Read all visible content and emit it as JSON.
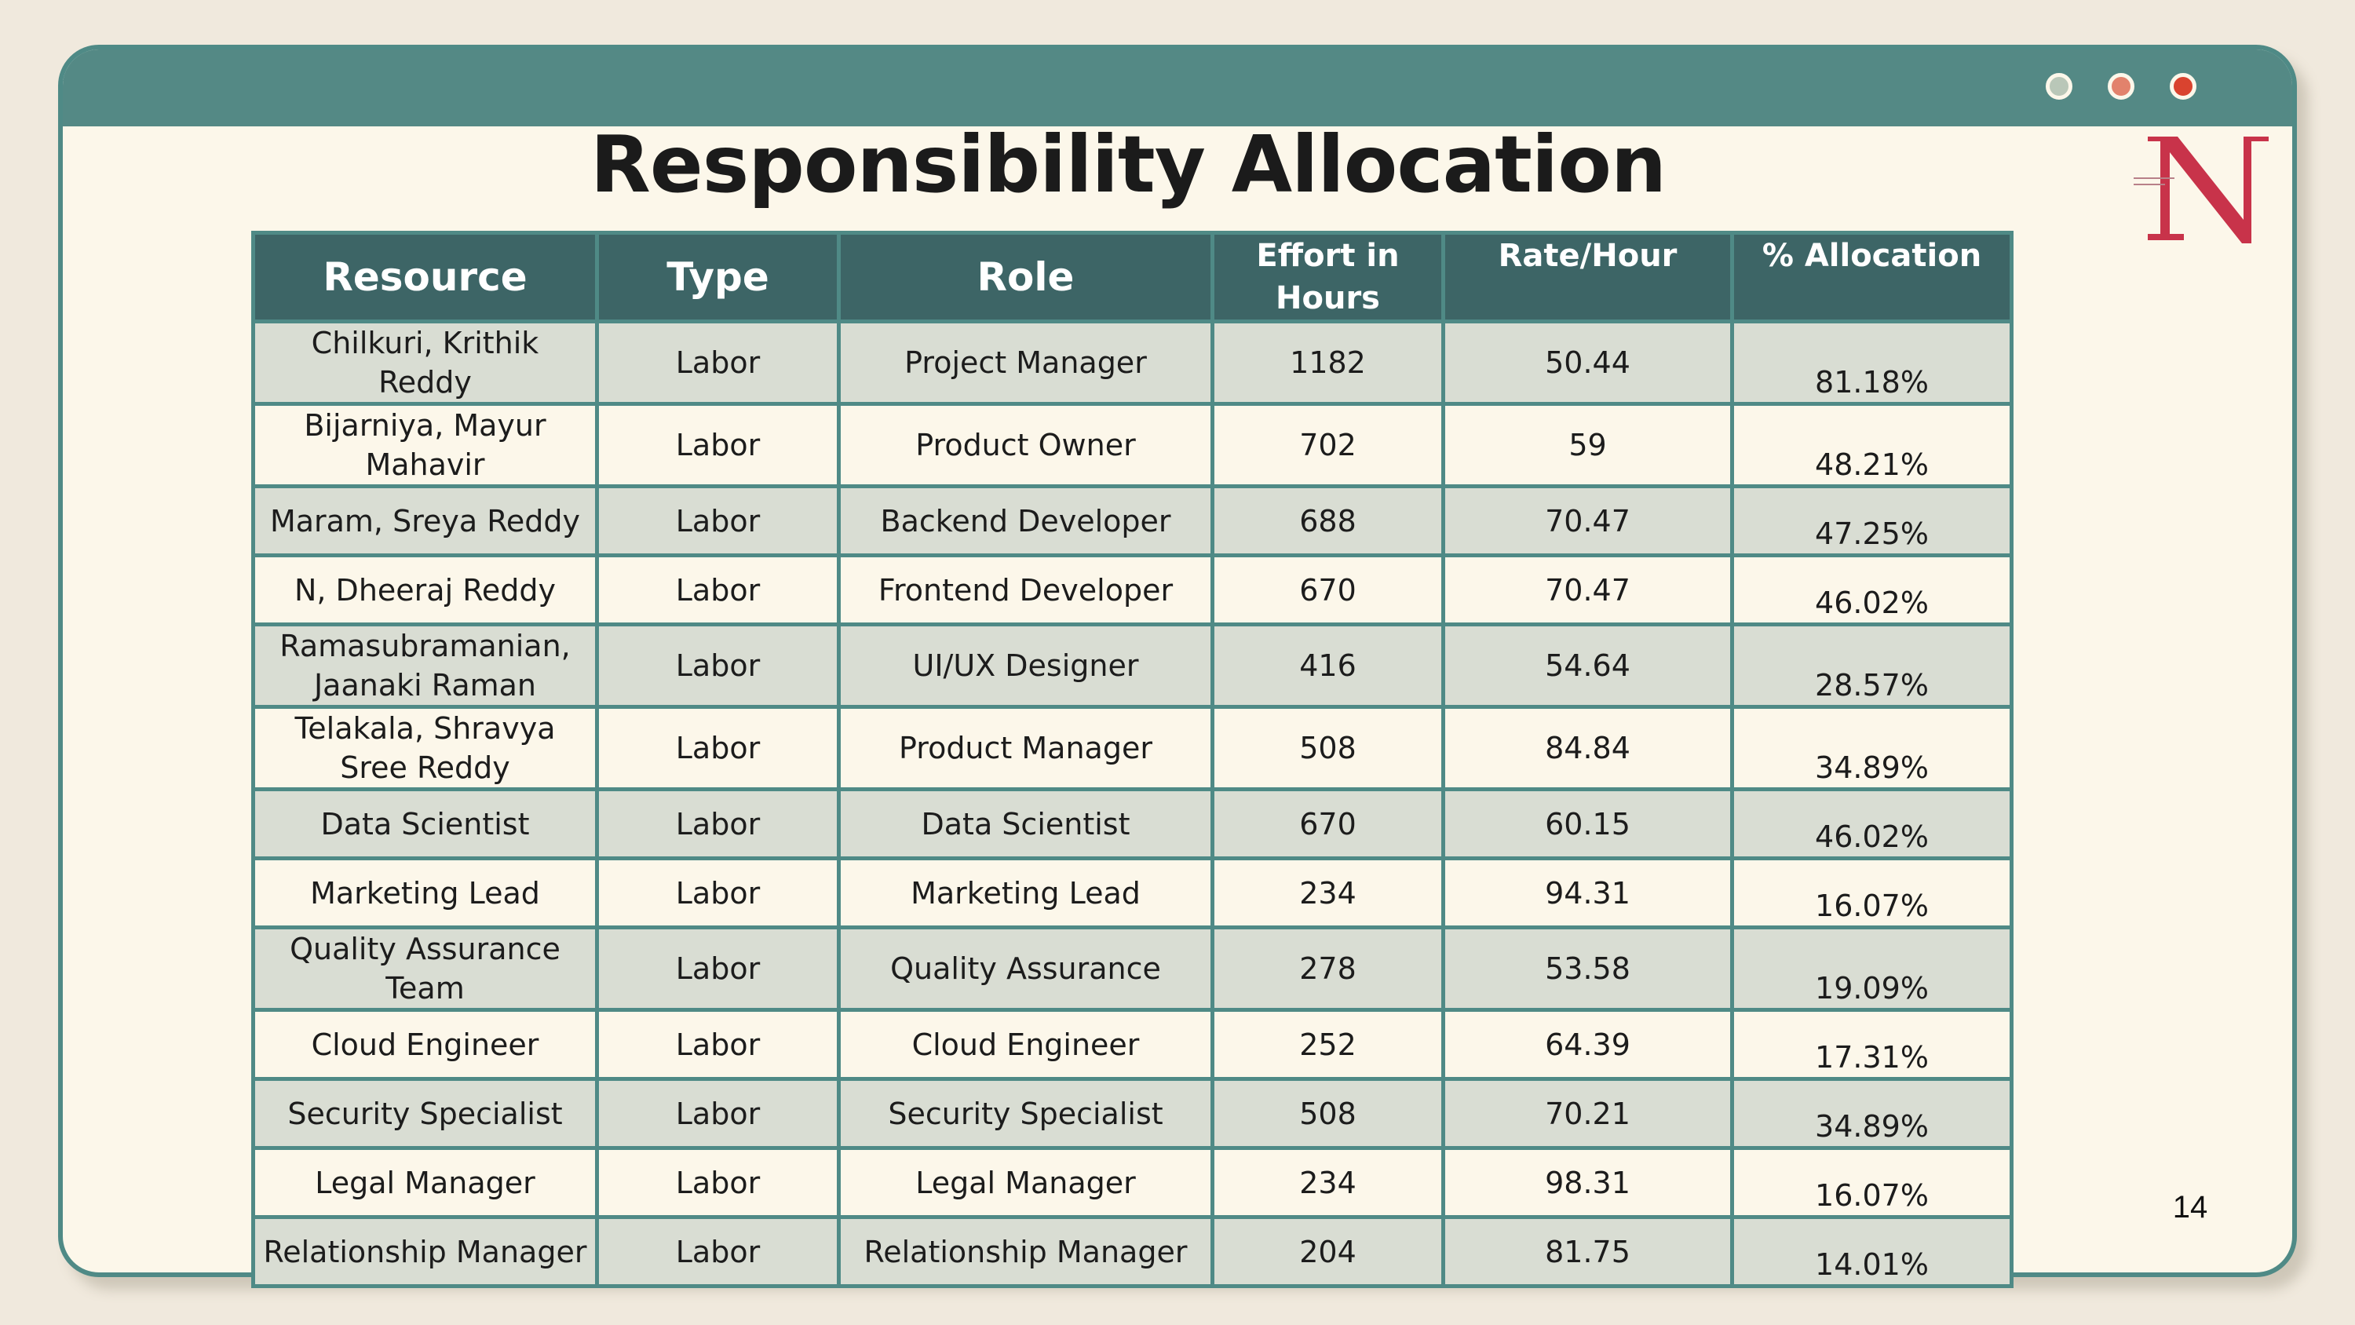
{
  "slide": {
    "title": "Responsibility Allocation",
    "page_number": "14"
  },
  "window": {
    "controls": [
      "green-dot",
      "orange-dot",
      "red-dot"
    ],
    "colors": {
      "titlebar": "#548985",
      "border": "#4f8a86",
      "background": "#fcf7ea"
    }
  },
  "logo": {
    "icon": "northeastern-n-logo",
    "color": "#c8334a"
  },
  "table": {
    "headers": {
      "resource": "Resource",
      "type": "Type",
      "role": "Role",
      "effort_line1": "Effort in",
      "effort_line2": "Hours",
      "rate": "Rate/Hour",
      "allocation": "% Allocation"
    },
    "rows": [
      {
        "resource": "Chilkuri, Krithik Reddy",
        "type": "Labor",
        "role": "Project Manager",
        "effort": "1182",
        "rate": "50.44",
        "allocation": "81.18%"
      },
      {
        "resource": "Bijarniya, Mayur Mahavir",
        "type": "Labor",
        "role": "Product Owner",
        "effort": "702",
        "rate": "59",
        "allocation": "48.21%"
      },
      {
        "resource": "Maram, Sreya Reddy",
        "type": "Labor",
        "role": "Backend Developer",
        "effort": "688",
        "rate": "70.47",
        "allocation": "47.25%"
      },
      {
        "resource": "N, Dheeraj Reddy",
        "type": "Labor",
        "role": "Frontend Developer",
        "effort": "670",
        "rate": "70.47",
        "allocation": "46.02%"
      },
      {
        "resource": "Ramasubramanian, Jaanaki Raman",
        "type": "Labor",
        "role": "UI/UX Designer",
        "effort": "416",
        "rate": "54.64",
        "allocation": "28.57%"
      },
      {
        "resource": "Telakala, Shravya Sree Reddy",
        "type": "Labor",
        "role": "Product Manager",
        "effort": "508",
        "rate": "84.84",
        "allocation": "34.89%"
      },
      {
        "resource": "Data Scientist",
        "type": "Labor",
        "role": "Data Scientist",
        "effort": "670",
        "rate": "60.15",
        "allocation": "46.02%"
      },
      {
        "resource": "Marketing Lead",
        "type": "Labor",
        "role": "Marketing Lead",
        "effort": "234",
        "rate": "94.31",
        "allocation": "16.07%"
      },
      {
        "resource": "Quality Assurance Team",
        "type": "Labor",
        "role": "Quality Assurance",
        "effort": "278",
        "rate": "53.58",
        "allocation": "19.09%"
      },
      {
        "resource": "Cloud Engineer",
        "type": "Labor",
        "role": "Cloud Engineer",
        "effort": "252",
        "rate": "64.39",
        "allocation": "17.31%"
      },
      {
        "resource": "Security Specialist",
        "type": "Labor",
        "role": "Security Specialist",
        "effort": "508",
        "rate": "70.21",
        "allocation": "34.89%"
      },
      {
        "resource": "Legal Manager",
        "type": "Labor",
        "role": "Legal Manager",
        "effort": "234",
        "rate": "98.31",
        "allocation": "16.07%"
      },
      {
        "resource": "Relationship Manager",
        "type": "Labor",
        "role": "Relationship Manager",
        "effort": "204",
        "rate": "81.75",
        "allocation": "14.01%"
      }
    ]
  }
}
